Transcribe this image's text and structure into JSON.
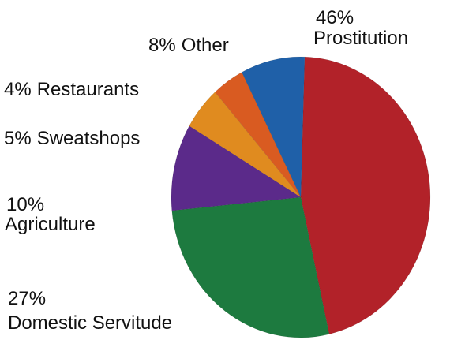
{
  "chart_data": {
    "type": "pie",
    "categories": [
      "Prostitution",
      "Domestic Servitude",
      "Agriculture",
      "Sweatshops",
      "Restaurants",
      "Other"
    ],
    "values": [
      46,
      27,
      10,
      5,
      4,
      8
    ],
    "value_labels": [
      "46%",
      "27%",
      "10%",
      "5%",
      "4%",
      "8%"
    ],
    "colors": [
      "#b22229",
      "#1d7a3f",
      "#5b2a8a",
      "#e08b1f",
      "#d95b21",
      "#1f60a8"
    ]
  }
}
